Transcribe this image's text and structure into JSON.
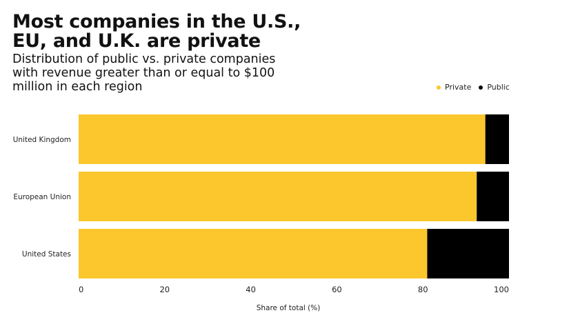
{
  "header": {
    "title": "Most companies in the U.S., EU, and U.K. are private",
    "subtitle": "Distribution of public vs. private companies with revenue greater than or equal to $100 million in each region"
  },
  "chart_data": {
    "type": "bar",
    "orientation": "horizontal",
    "stacked": true,
    "title": "Most companies in the U.S., EU, and U.K. are private",
    "subtitle": "Distribution of public vs. private companies with revenue greater than or equal to $100 million in each region",
    "categories": [
      "United Kingdom",
      "European Union",
      "United States"
    ],
    "series": [
      {
        "name": "Private",
        "color": "#FCC72D",
        "values": [
          94.5,
          92.5,
          81
        ]
      },
      {
        "name": "Public",
        "color": "#000000",
        "values": [
          5.5,
          7.5,
          19
        ]
      }
    ],
    "xlabel": "Share of total (%)",
    "ylabel": "",
    "xlim": [
      0,
      100
    ],
    "xticks": [
      0,
      20,
      40,
      60,
      80,
      100
    ],
    "grid": false,
    "legend_position": "top-right"
  }
}
